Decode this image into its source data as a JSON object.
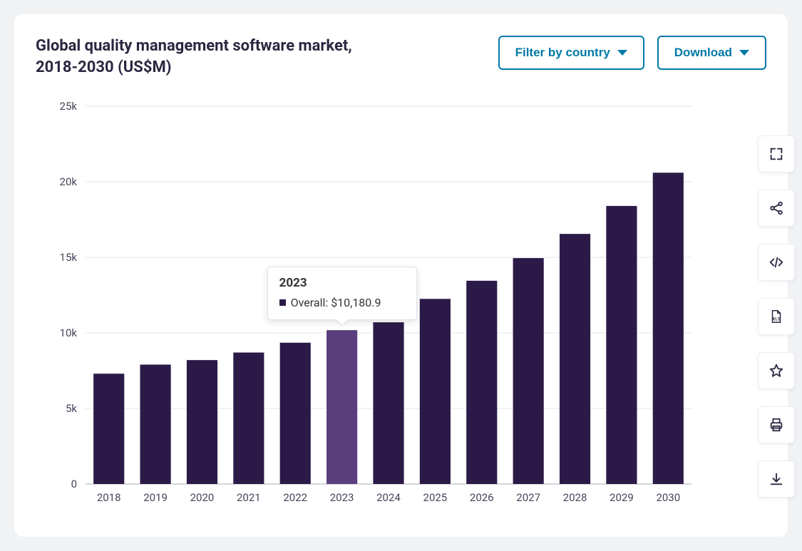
{
  "title": "Global quality management software market, 2018-2030 (US$M)",
  "filter_button_label": "Filter by country",
  "download_button_label": "Download",
  "chart": {
    "type": "bar",
    "categories": [
      "2018",
      "2019",
      "2020",
      "2021",
      "2022",
      "2023",
      "2024",
      "2025",
      "2026",
      "2027",
      "2028",
      "2029",
      "2030"
    ],
    "values": [
      7300,
      7900,
      8200,
      8700,
      9350,
      10180.9,
      10700,
      12250,
      13450,
      14950,
      16550,
      18400,
      20600
    ],
    "ylim": [
      0,
      25000
    ],
    "ytick_step": 5000,
    "ytick_labels": [
      "0",
      "5k",
      "10k",
      "15k",
      "20k",
      "25k"
    ],
    "bar_color": "#2b1a47",
    "bar_highlight_color": "#5a3e7d",
    "highlight_index": 5,
    "background_color": "#ffffff",
    "grid_color": "#e6e6ec",
    "baseline_color": "#c7c9d1",
    "bar_width_ratio": 0.66,
    "axis_fontsize": 15,
    "axis_color": "#44465a"
  },
  "tooltip": {
    "title": "2023",
    "series_label": "Overall",
    "value_formatted": "$10,180.9",
    "swatch_color": "#2b1a47"
  },
  "button_border_color": "#0079a5",
  "button_text_color": "#0079a5",
  "title_color": "#2b2740",
  "side_tools": [
    {
      "name": "expand-icon"
    },
    {
      "name": "share-icon"
    },
    {
      "name": "embed-icon"
    },
    {
      "name": "xls-icon"
    },
    {
      "name": "star-icon"
    },
    {
      "name": "print-icon"
    },
    {
      "name": "download-icon"
    }
  ]
}
